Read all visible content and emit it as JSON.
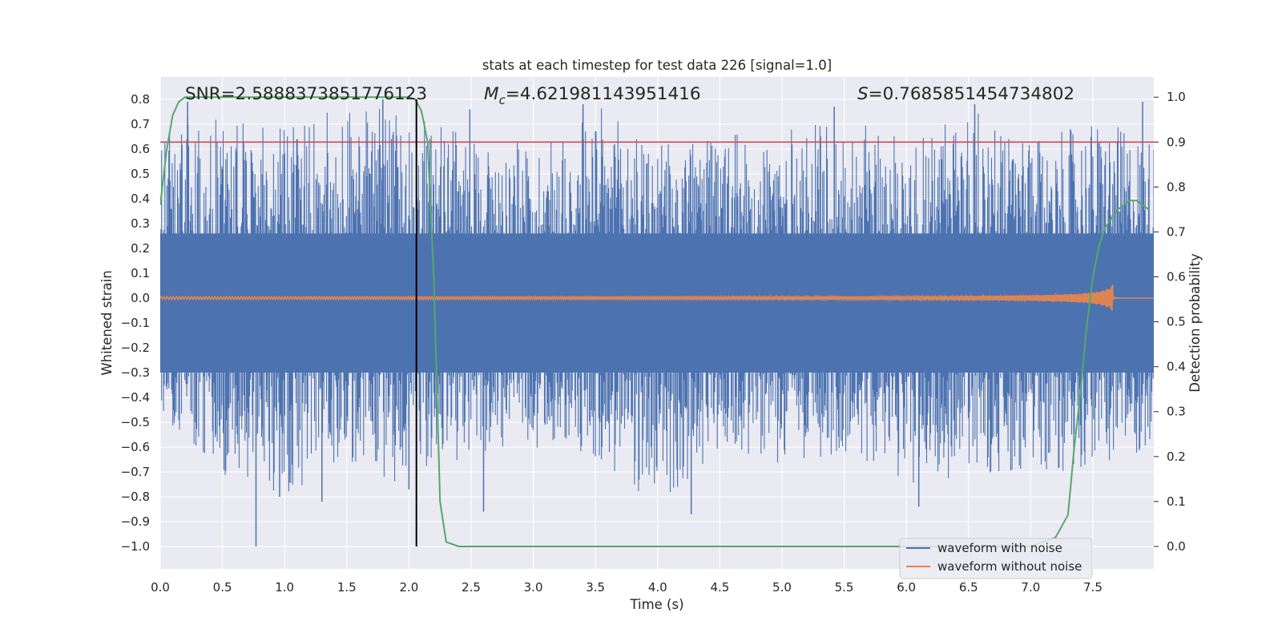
{
  "chart_data": {
    "type": "line",
    "title": "stats at each timestep for test data 226 [signal=1.0]",
    "xlabel": "Time (s)",
    "ylabel": "Whitened strain",
    "y2label": "Detection probability",
    "xlim": [
      0.0,
      7.99
    ],
    "ylim": [
      -1.09,
      0.89
    ],
    "y2lim": [
      -0.05,
      1.045
    ],
    "x_ticks": [
      0.0,
      0.5,
      1.0,
      1.5,
      2.0,
      2.5,
      3.0,
      3.5,
      4.0,
      4.5,
      5.0,
      5.5,
      6.0,
      6.5,
      7.0,
      7.5
    ],
    "x_tick_labels": [
      "0.0",
      "0.5",
      "1.0",
      "1.5",
      "2.0",
      "2.5",
      "3.0",
      "3.5",
      "4.0",
      "4.5",
      "5.0",
      "5.5",
      "6.0",
      "6.5",
      "7.0",
      "7.5"
    ],
    "y_ticks": [
      0.8,
      0.7,
      0.6,
      0.5,
      0.4,
      0.3,
      0.2,
      0.1,
      0.0,
      -0.1,
      -0.2,
      -0.3,
      -0.4,
      -0.5,
      -0.6,
      -0.7,
      -0.8,
      -0.9,
      -1.0
    ],
    "y_tick_labels": [
      "0.8",
      "0.7",
      "0.6",
      "0.5",
      "0.4",
      "0.3",
      "0.2",
      "0.1",
      "0.0",
      "−0.1",
      "−0.2",
      "−0.3",
      "−0.4",
      "−0.5",
      "−0.6",
      "−0.7",
      "−0.8",
      "−0.9",
      "−1.0"
    ],
    "y2_ticks": [
      1.0,
      0.9,
      0.8,
      0.7,
      0.6,
      0.5,
      0.4,
      0.3,
      0.2,
      0.1,
      0.0
    ],
    "y2_tick_labels": [
      "1.0",
      "0.9",
      "0.8",
      "0.7",
      "0.6",
      "0.5",
      "0.4",
      "0.3",
      "0.2",
      "0.1",
      "0.0"
    ],
    "grid": true,
    "legend_position": "bottom-right",
    "annotations": {
      "snr": "SNR=2.5888373851776123",
      "mc_symbol": "M",
      "mc_sub": "c",
      "mc_value": "=4.621981143951416",
      "s_symbol": "S",
      "s_value": "=0.7685851454734802"
    },
    "series": [
      {
        "name": "waveform with noise",
        "color": "#4c72b0",
        "description": "dense noise band",
        "envelope": {
          "t": [
            0.0,
            0.2,
            0.5,
            1.0,
            1.5,
            2.0,
            2.5,
            3.0,
            3.5,
            4.0,
            4.5,
            5.0,
            5.5,
            6.0,
            6.5,
            7.0,
            7.5,
            7.99
          ],
          "upper": [
            0.65,
            0.78,
            0.72,
            0.7,
            0.78,
            0.75,
            0.65,
            0.62,
            0.78,
            0.62,
            0.65,
            0.68,
            0.72,
            0.65,
            0.78,
            0.62,
            0.72,
            0.65
          ],
          "lower": [
            -0.5,
            -0.55,
            -0.72,
            -0.8,
            -0.65,
            -0.77,
            -0.62,
            -0.6,
            -0.65,
            -0.85,
            -0.6,
            -0.67,
            -0.62,
            -0.75,
            -0.72,
            -0.73,
            -0.67,
            -0.62
          ]
        },
        "core_range": [
          -0.3,
          0.26
        ],
        "spikes": [
          {
            "t": 0.77,
            "v": -1.0
          },
          {
            "t": 1.79,
            "v": 0.8
          },
          {
            "t": 2.49,
            "v": 0.76
          },
          {
            "t": 1.3,
            "v": -0.82
          },
          {
            "t": 4.27,
            "v": -0.87
          },
          {
            "t": 2.6,
            "v": -0.86
          },
          {
            "t": 0.96,
            "v": -0.8
          },
          {
            "t": 2.0,
            "v": -0.77
          },
          {
            "t": 6.1,
            "v": -0.84
          },
          {
            "t": 3.4,
            "v": 0.78
          },
          {
            "t": 6.55,
            "v": 0.78
          },
          {
            "t": 7.9,
            "v": 0.79
          },
          {
            "t": 0.22,
            "v": 0.79
          },
          {
            "t": 5.42,
            "v": 0.77
          }
        ]
      },
      {
        "name": "waveform without noise",
        "color": "#dd8452",
        "description": "chirp growing towards merger",
        "merger_time": 7.66,
        "peak_amplitude": 0.055
      },
      {
        "name": "detection probability",
        "color": "#55a868",
        "axis": "right",
        "t": [
          0.0,
          0.05,
          0.1,
          0.15,
          0.2,
          0.3,
          0.4,
          0.5,
          1.0,
          1.5,
          1.9,
          2.0,
          2.05,
          2.1,
          2.15,
          2.2,
          2.25,
          2.3,
          2.4,
          2.5,
          3.0,
          4.0,
          5.0,
          6.0,
          7.0,
          7.2,
          7.3,
          7.35,
          7.4,
          7.45,
          7.5,
          7.55,
          7.6,
          7.7,
          7.8,
          7.85,
          7.9,
          7.95
        ],
        "p": [
          0.76,
          0.88,
          0.96,
          0.99,
          1.0,
          1.0,
          1.0,
          1.0,
          1.0,
          1.0,
          1.0,
          1.0,
          0.995,
          0.97,
          0.9,
          0.6,
          0.1,
          0.01,
          0.0,
          0.0,
          0.0,
          0.0,
          0.0,
          0.0,
          0.0,
          0.02,
          0.07,
          0.22,
          0.34,
          0.49,
          0.6,
          0.67,
          0.71,
          0.75,
          0.77,
          0.77,
          0.76,
          0.75
        ]
      },
      {
        "name": "threshold",
        "color": "#c44e52",
        "axis": "right",
        "value": 0.9
      },
      {
        "name": "marker",
        "color": "#000000",
        "t": 2.06,
        "from": -1.0,
        "to": 0.8
      }
    ],
    "legend": [
      "waveform with noise",
      "waveform without noise"
    ]
  }
}
